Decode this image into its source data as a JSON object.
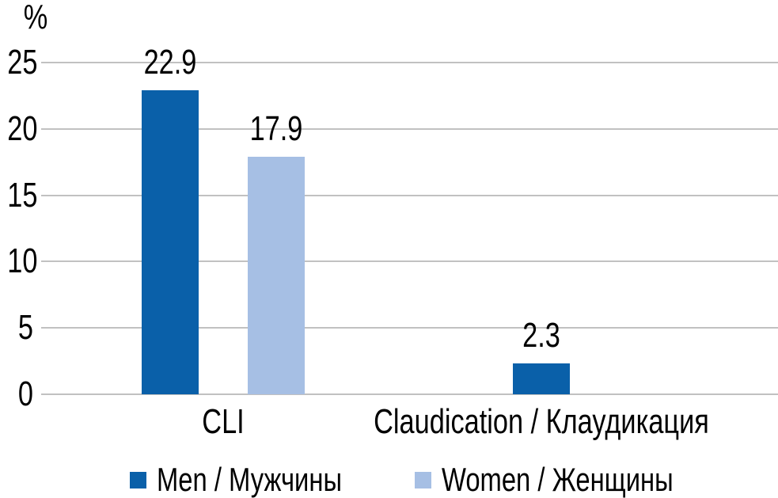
{
  "colors": {
    "men_bar": "#0A60A9",
    "women_bar": "#A6BFE4",
    "gridline": "#C1C1C1",
    "text": "#000000",
    "background": "#FFFFFF"
  },
  "chart_data": {
    "type": "bar",
    "title": "",
    "xlabel": "",
    "ylabel": "%",
    "ylim": [
      0,
      25
    ],
    "yticks": [
      0,
      5,
      10,
      15,
      20,
      25
    ],
    "grid": true,
    "legend_position": "bottom",
    "categories": [
      "CLI",
      "Claudication / Клаудикация"
    ],
    "series": [
      {
        "name": "Men / Мужчины",
        "color": "#0A60A9",
        "values": [
          22.9,
          2.3
        ]
      },
      {
        "name": "Women / Женщины",
        "color": "#A6BFE4",
        "values": [
          17.9,
          null
        ]
      }
    ]
  }
}
